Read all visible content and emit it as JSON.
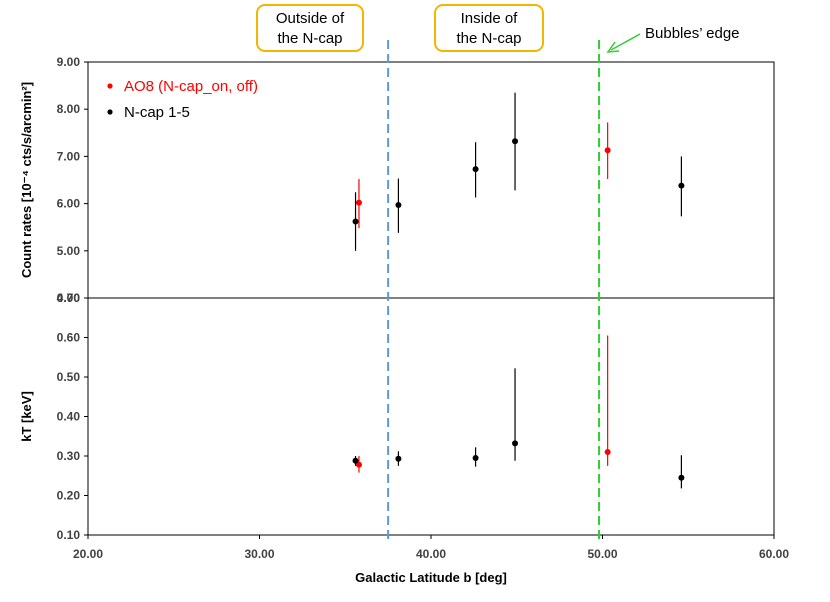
{
  "chart_data": {
    "type": "scatter",
    "xlabel": "Galactic Latitude b [deg]",
    "xlim": [
      20,
      60
    ],
    "xticks": [
      "20.00",
      "30.00",
      "40.00",
      "50.00",
      "60.00"
    ],
    "panels": [
      {
        "name": "count-rates",
        "ylabel": "Count rates [10⁻⁴ cts/s/arcmin²]",
        "ylim": [
          4,
          9
        ],
        "yticks": [
          "4.00",
          "5.00",
          "6.00",
          "7.00",
          "8.00",
          "9.00"
        ],
        "series": [
          {
            "name": "AO8 (N-cap_on, off)",
            "color": "#ff0000",
            "points": [
              {
                "x": 35.8,
                "y": 6.02,
                "ylo": 5.48,
                "yhi": 6.52
              },
              {
                "x": 50.3,
                "y": 7.13,
                "ylo": 6.52,
                "yhi": 7.72
              }
            ]
          },
          {
            "name": "N-cap 1-5",
            "color": "#000000",
            "points": [
              {
                "x": 35.6,
                "y": 5.62,
                "ylo": 5.0,
                "yhi": 6.24
              },
              {
                "x": 38.1,
                "y": 5.97,
                "ylo": 5.38,
                "yhi": 6.53
              },
              {
                "x": 42.6,
                "y": 6.73,
                "ylo": 6.13,
                "yhi": 7.3
              },
              {
                "x": 44.9,
                "y": 7.32,
                "ylo": 6.28,
                "yhi": 8.35
              },
              {
                "x": 54.6,
                "y": 6.38,
                "ylo": 5.73,
                "yhi": 7.0
              }
            ]
          }
        ]
      },
      {
        "name": "kT",
        "ylabel": "kT [keV]",
        "ylim": [
          0.1,
          0.7
        ],
        "yticks": [
          "0.10",
          "0.20",
          "0.30",
          "0.40",
          "0.50",
          "0.60",
          "0.70"
        ],
        "series": [
          {
            "name": "AO8 (N-cap_on, off)",
            "color": "#ff0000",
            "points": [
              {
                "x": 35.8,
                "y": 0.278,
                "ylo": 0.258,
                "yhi": 0.3
              },
              {
                "x": 50.3,
                "y": 0.31,
                "ylo": 0.275,
                "yhi": 0.605
              }
            ]
          },
          {
            "name": "N-cap 1-5",
            "color": "#000000",
            "points": [
              {
                "x": 35.6,
                "y": 0.288,
                "ylo": 0.275,
                "yhi": 0.3
              },
              {
                "x": 38.1,
                "y": 0.293,
                "ylo": 0.275,
                "yhi": 0.312
              },
              {
                "x": 42.6,
                "y": 0.295,
                "ylo": 0.273,
                "yhi": 0.322
              },
              {
                "x": 44.9,
                "y": 0.332,
                "ylo": 0.288,
                "yhi": 0.522
              },
              {
                "x": 54.6,
                "y": 0.245,
                "ylo": 0.218,
                "yhi": 0.302
              }
            ]
          }
        ]
      }
    ],
    "reference_lines": [
      {
        "name": "n-cap-boundary",
        "x": 37.5,
        "color": "#5b9bd5",
        "style": "dashed"
      },
      {
        "name": "bubbles-edge",
        "x": 49.8,
        "color": "#33cc33",
        "style": "dashed"
      }
    ],
    "annotations": {
      "outside_label": [
        "Outside of",
        "the N-cap"
      ],
      "inside_label": [
        "Inside of",
        "the N-cap"
      ],
      "bubbles_edge_label": "Bubbles’ edge"
    },
    "legend": {
      "placement": "top-left",
      "entries": [
        {
          "label": "AO8 (N-cap_on, off)",
          "color": "#ff0000"
        },
        {
          "label": "N-cap 1-5",
          "color": "#000000"
        }
      ]
    }
  }
}
